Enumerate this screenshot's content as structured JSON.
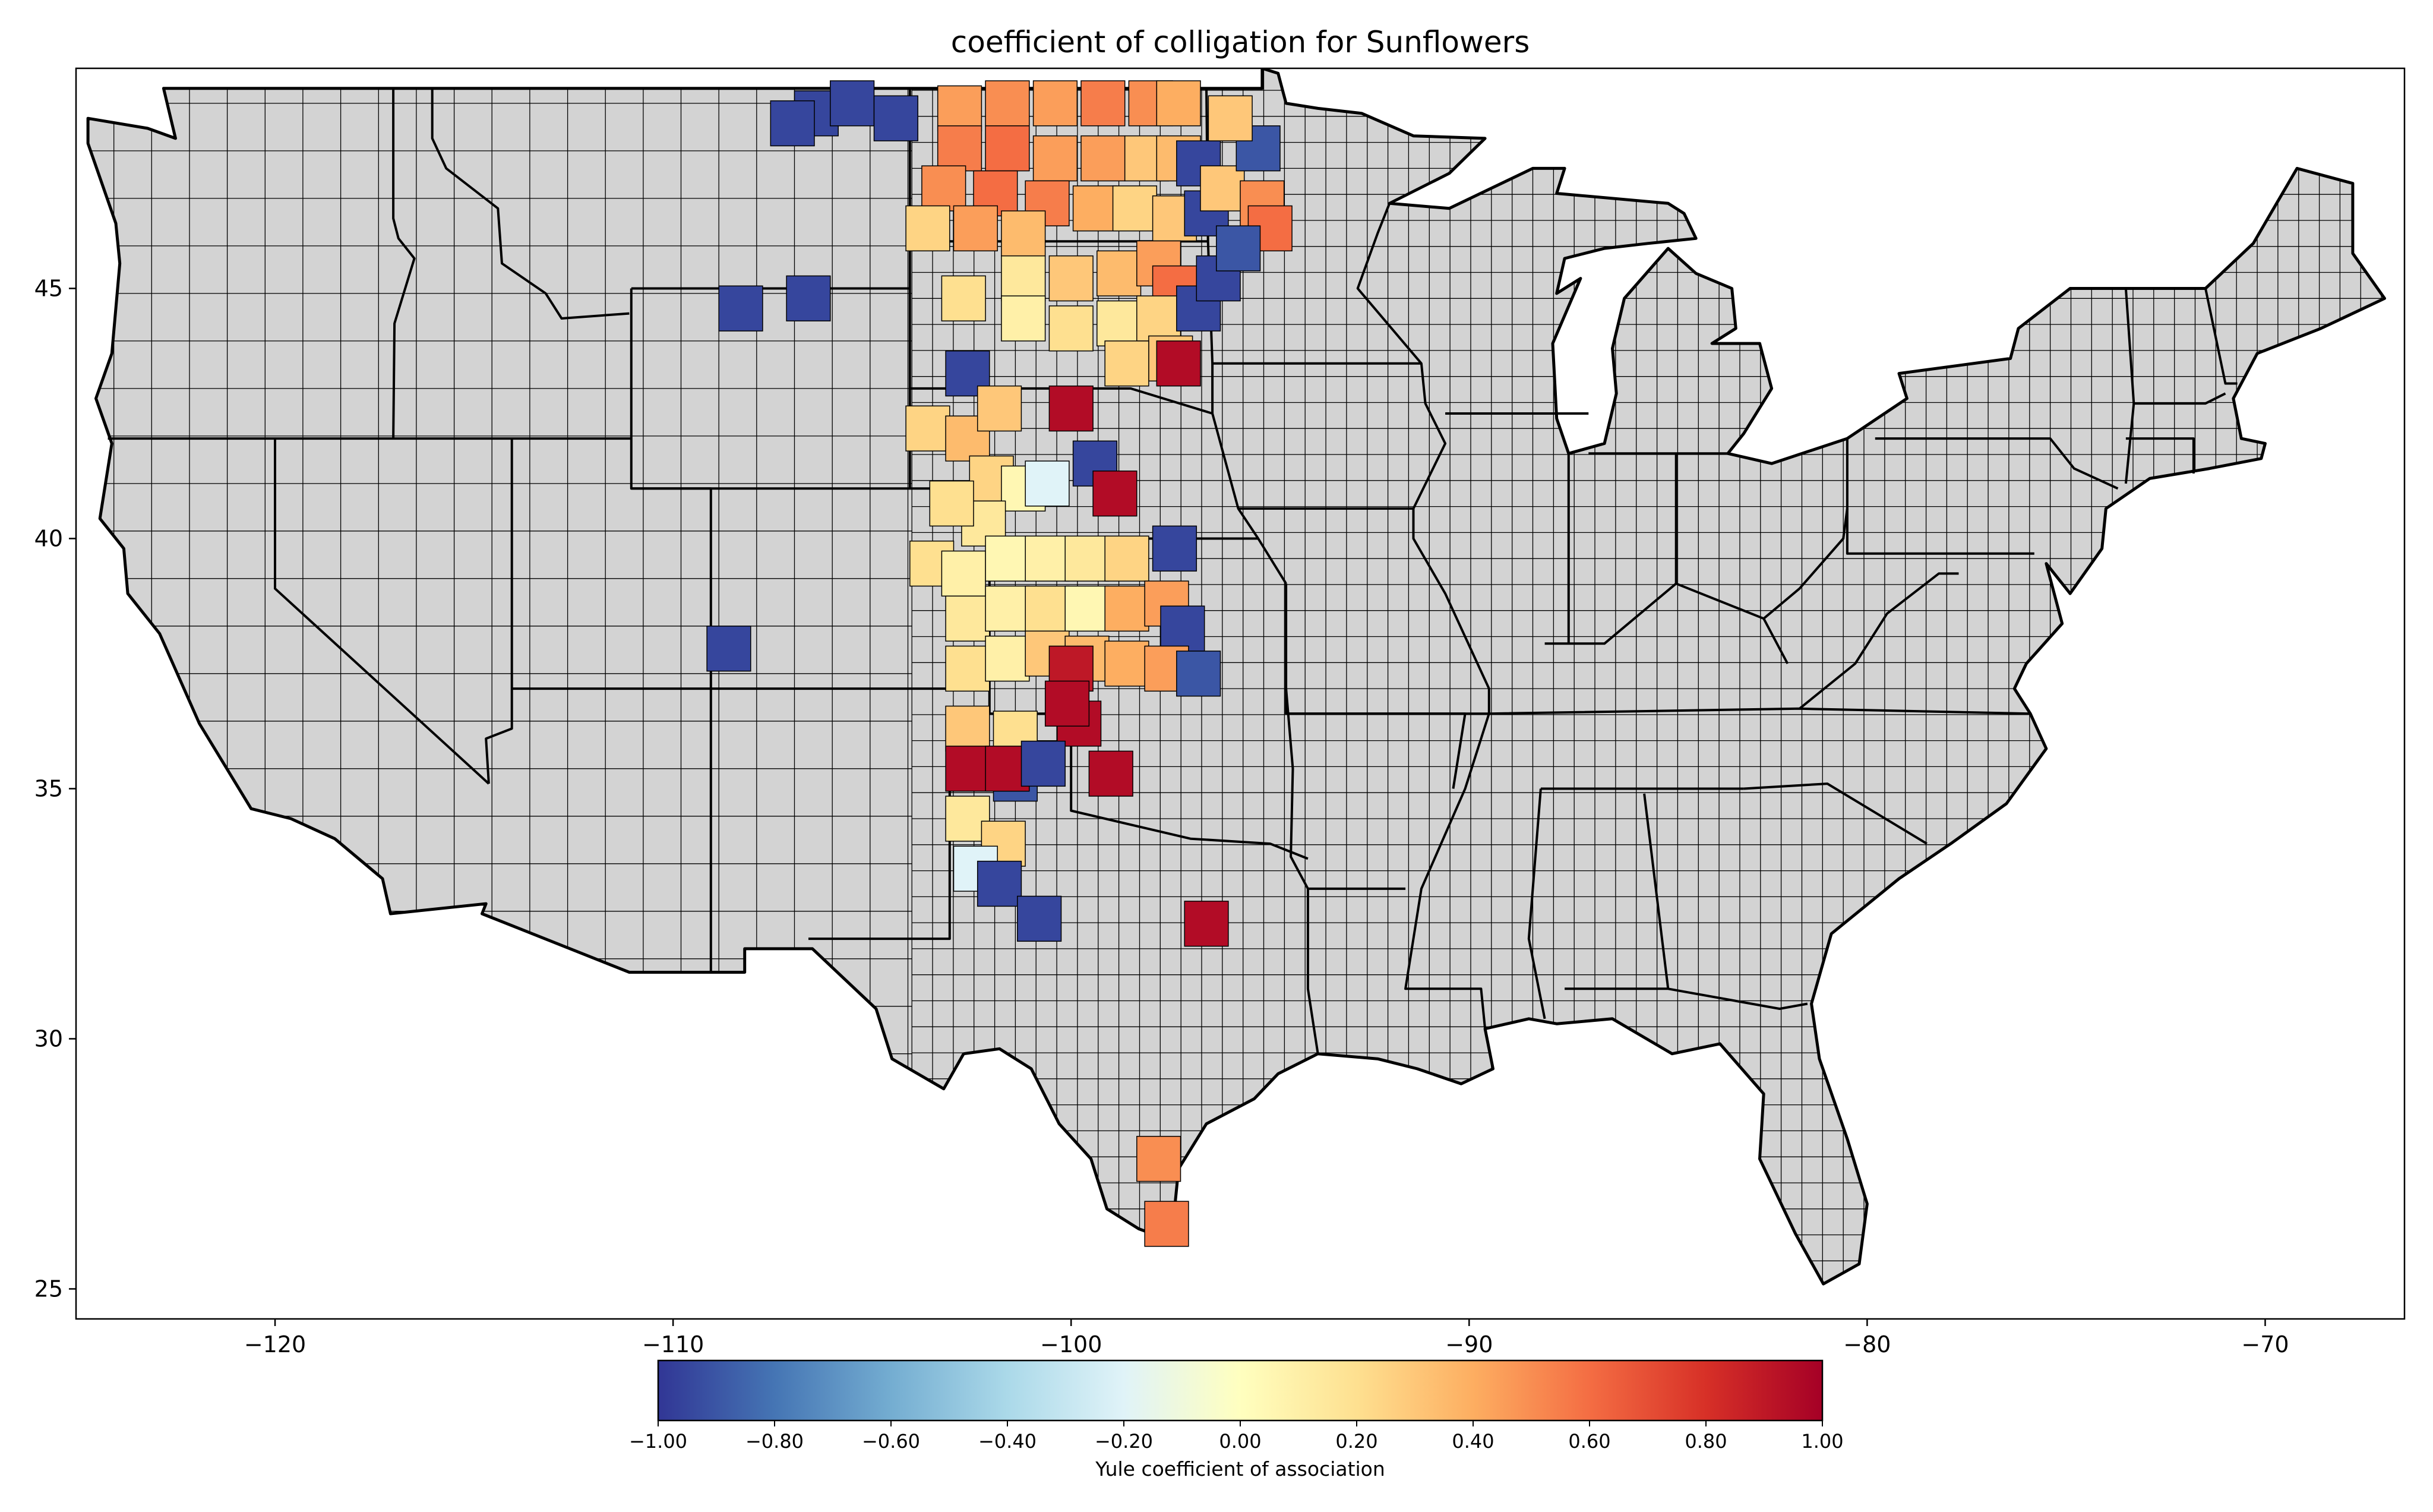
{
  "title": "coefficient of colligation for Sunflowers",
  "axes": {
    "x": {
      "min": -125,
      "max": -66.5,
      "ticks": [
        -120,
        -110,
        -100,
        -90,
        -80,
        -70
      ],
      "tick_labels": [
        "−120",
        "−110",
        "−100",
        "−90",
        "−80",
        "−70"
      ]
    },
    "y": {
      "min": 24.4,
      "max": 49.4,
      "ticks": [
        25,
        30,
        35,
        40,
        45
      ],
      "tick_labels": [
        "25",
        "30",
        "35",
        "40",
        "45"
      ]
    }
  },
  "colorbar": {
    "label": "Yule coefficient of association",
    "min": -1,
    "max": 1,
    "colormap": "RdYlBu_r",
    "ticks": [
      -1,
      -0.8,
      -0.6,
      -0.4,
      -0.2,
      0,
      0.2,
      0.4,
      0.6,
      0.8,
      1
    ],
    "tick_labels": [
      "−1.00",
      "−0.80",
      "−0.60",
      "−0.40",
      "−0.20",
      "0.00",
      "0.20",
      "0.40",
      "0.60",
      "0.80",
      "1.00"
    ]
  },
  "colors": {
    "land": "#d3d3d3",
    "state_border": "#000000",
    "no_data": "#d3d3d3"
  },
  "chart_data": {
    "type": "heatmap",
    "title": "coefficient of colligation for Sunflowers",
    "xlabel": "",
    "ylabel": "",
    "xlim": [
      -125,
      -66.5
    ],
    "ylim": [
      24.4,
      49.4
    ],
    "value_label": "Yule coefficient of association",
    "value_range": [
      -1,
      1
    ],
    "grid": false,
    "counties": [
      {
        "lon": -106.4,
        "lat": 48.5,
        "value": -0.95
      },
      {
        "lon": -105.5,
        "lat": 48.7,
        "value": -0.95
      },
      {
        "lon": -104.4,
        "lat": 48.4,
        "value": -0.95
      },
      {
        "lon": -107.0,
        "lat": 48.3,
        "value": -0.95
      },
      {
        "lon": -102.8,
        "lat": 48.6,
        "value": 0.45
      },
      {
        "lon": -101.6,
        "lat": 48.7,
        "value": 0.5
      },
      {
        "lon": -100.4,
        "lat": 48.7,
        "value": 0.45
      },
      {
        "lon": -99.2,
        "lat": 48.7,
        "value": 0.55
      },
      {
        "lon": -98.0,
        "lat": 48.7,
        "value": 0.5
      },
      {
        "lon": -97.3,
        "lat": 48.7,
        "value": 0.4
      },
      {
        "lon": -102.8,
        "lat": 47.8,
        "value": 0.55
      },
      {
        "lon": -101.6,
        "lat": 47.8,
        "value": 0.6
      },
      {
        "lon": -100.4,
        "lat": 47.6,
        "value": 0.45
      },
      {
        "lon": -99.2,
        "lat": 47.6,
        "value": 0.45
      },
      {
        "lon": -98.1,
        "lat": 47.6,
        "value": 0.3
      },
      {
        "lon": -97.3,
        "lat": 47.6,
        "value": 0.35
      },
      {
        "lon": -103.2,
        "lat": 47.0,
        "value": 0.5
      },
      {
        "lon": -101.9,
        "lat": 46.9,
        "value": 0.6
      },
      {
        "lon": -100.6,
        "lat": 46.7,
        "value": 0.55
      },
      {
        "lon": -99.4,
        "lat": 46.6,
        "value": 0.4
      },
      {
        "lon": -98.4,
        "lat": 46.6,
        "value": 0.25
      },
      {
        "lon": -97.4,
        "lat": 46.4,
        "value": 0.3
      },
      {
        "lon": -103.6,
        "lat": 46.2,
        "value": 0.25
      },
      {
        "lon": -102.4,
        "lat": 46.2,
        "value": 0.45
      },
      {
        "lon": -101.2,
        "lat": 46.1,
        "value": 0.35
      },
      {
        "lon": -96.8,
        "lat": 47.5,
        "value": -0.95
      },
      {
        "lon": -96.6,
        "lat": 46.5,
        "value": -0.95
      },
      {
        "lon": -96.2,
        "lat": 47.0,
        "value": 0.3
      },
      {
        "lon": -95.3,
        "lat": 47.8,
        "value": -0.9
      },
      {
        "lon": -95.2,
        "lat": 46.7,
        "value": 0.5
      },
      {
        "lon": -95.0,
        "lat": 46.2,
        "value": 0.6
      },
      {
        "lon": -96.0,
        "lat": 48.4,
        "value": 0.3
      },
      {
        "lon": -101.2,
        "lat": 45.2,
        "value": 0.15
      },
      {
        "lon": -100.0,
        "lat": 45.2,
        "value": 0.3
      },
      {
        "lon": -98.8,
        "lat": 45.3,
        "value": 0.35
      },
      {
        "lon": -97.8,
        "lat": 45.5,
        "value": 0.45
      },
      {
        "lon": -97.4,
        "lat": 45.0,
        "value": 0.6
      },
      {
        "lon": -102.7,
        "lat": 44.8,
        "value": 0.2
      },
      {
        "lon": -101.2,
        "lat": 44.4,
        "value": 0.1
      },
      {
        "lon": -100.0,
        "lat": 44.2,
        "value": 0.2
      },
      {
        "lon": -98.8,
        "lat": 44.3,
        "value": 0.15
      },
      {
        "lon": -97.8,
        "lat": 44.4,
        "value": 0.25
      },
      {
        "lon": -96.8,
        "lat": 44.6,
        "value": -0.95
      },
      {
        "lon": -96.3,
        "lat": 45.2,
        "value": -0.95
      },
      {
        "lon": -95.8,
        "lat": 45.8,
        "value": -0.9
      },
      {
        "lon": -97.5,
        "lat": 43.6,
        "value": 0.3
      },
      {
        "lon": -98.6,
        "lat": 43.5,
        "value": 0.25
      },
      {
        "lon": -102.6,
        "lat": 43.3,
        "value": -0.95
      },
      {
        "lon": -97.3,
        "lat": 43.5,
        "value": 0.95
      },
      {
        "lon": -108.3,
        "lat": 44.6,
        "value": -0.95
      },
      {
        "lon": -106.6,
        "lat": 44.8,
        "value": -0.95
      },
      {
        "lon": -103.6,
        "lat": 42.2,
        "value": 0.25
      },
      {
        "lon": -102.6,
        "lat": 42.0,
        "value": 0.35
      },
      {
        "lon": -101.8,
        "lat": 42.6,
        "value": 0.3
      },
      {
        "lon": -100.0,
        "lat": 42.6,
        "value": 0.95
      },
      {
        "lon": -102.0,
        "lat": 41.2,
        "value": 0.25
      },
      {
        "lon": -101.2,
        "lat": 41.0,
        "value": 0.05
      },
      {
        "lon": -100.6,
        "lat": 41.1,
        "value": -0.2
      },
      {
        "lon": -99.4,
        "lat": 41.5,
        "value": -0.95
      },
      {
        "lon": -98.9,
        "lat": 40.9,
        "value": 0.95
      },
      {
        "lon": -102.2,
        "lat": 40.3,
        "value": 0.15
      },
      {
        "lon": -103.0,
        "lat": 40.7,
        "value": 0.2
      },
      {
        "lon": -103.5,
        "lat": 39.5,
        "value": 0.2
      },
      {
        "lon": -102.7,
        "lat": 39.3,
        "value": 0.1
      },
      {
        "lon": -102.6,
        "lat": 38.4,
        "value": 0.15
      },
      {
        "lon": -102.6,
        "lat": 37.4,
        "value": 0.2
      },
      {
        "lon": -101.6,
        "lat": 39.6,
        "value": 0.05
      },
      {
        "lon": -100.6,
        "lat": 39.6,
        "value": 0.1
      },
      {
        "lon": -99.6,
        "lat": 39.6,
        "value": 0.15
      },
      {
        "lon": -98.6,
        "lat": 39.6,
        "value": 0.25
      },
      {
        "lon": -97.4,
        "lat": 39.8,
        "value": -0.95
      },
      {
        "lon": -101.6,
        "lat": 38.6,
        "value": 0.1
      },
      {
        "lon": -100.6,
        "lat": 38.6,
        "value": 0.2
      },
      {
        "lon": -99.6,
        "lat": 38.6,
        "value": 0.05
      },
      {
        "lon": -98.6,
        "lat": 38.6,
        "value": 0.4
      },
      {
        "lon": -97.6,
        "lat": 38.7,
        "value": 0.45
      },
      {
        "lon": -97.2,
        "lat": 38.2,
        "value": -0.95
      },
      {
        "lon": -101.6,
        "lat": 37.6,
        "value": 0.1
      },
      {
        "lon": -100.6,
        "lat": 37.7,
        "value": 0.3
      },
      {
        "lon": -99.6,
        "lat": 37.6,
        "value": 0.35
      },
      {
        "lon": -98.6,
        "lat": 37.5,
        "value": 0.4
      },
      {
        "lon": -97.6,
        "lat": 37.4,
        "value": 0.45
      },
      {
        "lon": -96.8,
        "lat": 37.3,
        "value": -0.9
      },
      {
        "lon": -100.0,
        "lat": 37.4,
        "value": 0.9
      },
      {
        "lon": -99.8,
        "lat": 36.3,
        "value": 0.95
      },
      {
        "lon": -100.1,
        "lat": 36.7,
        "value": 0.95
      },
      {
        "lon": -102.6,
        "lat": 36.2,
        "value": 0.3
      },
      {
        "lon": -101.4,
        "lat": 36.1,
        "value": 0.2
      },
      {
        "lon": -102.6,
        "lat": 35.4,
        "value": 0.95
      },
      {
        "lon": -101.4,
        "lat": 35.2,
        "value": -0.9
      },
      {
        "lon": -101.6,
        "lat": 35.4,
        "value": 0.95
      },
      {
        "lon": -100.7,
        "lat": 35.5,
        "value": -0.95
      },
      {
        "lon": -99.0,
        "lat": 35.3,
        "value": 0.95
      },
      {
        "lon": -102.6,
        "lat": 34.4,
        "value": 0.15
      },
      {
        "lon": -101.7,
        "lat": 33.9,
        "value": 0.25
      },
      {
        "lon": -102.4,
        "lat": 33.4,
        "value": -0.2
      },
      {
        "lon": -101.8,
        "lat": 33.1,
        "value": -0.95
      },
      {
        "lon": -100.8,
        "lat": 32.4,
        "value": -0.95
      },
      {
        "lon": -96.6,
        "lat": 32.3,
        "value": 0.95
      },
      {
        "lon": -108.6,
        "lat": 37.8,
        "value": -0.95
      },
      {
        "lon": -97.8,
        "lat": 27.6,
        "value": 0.5
      },
      {
        "lon": -97.6,
        "lat": 26.3,
        "value": 0.55
      }
    ]
  }
}
